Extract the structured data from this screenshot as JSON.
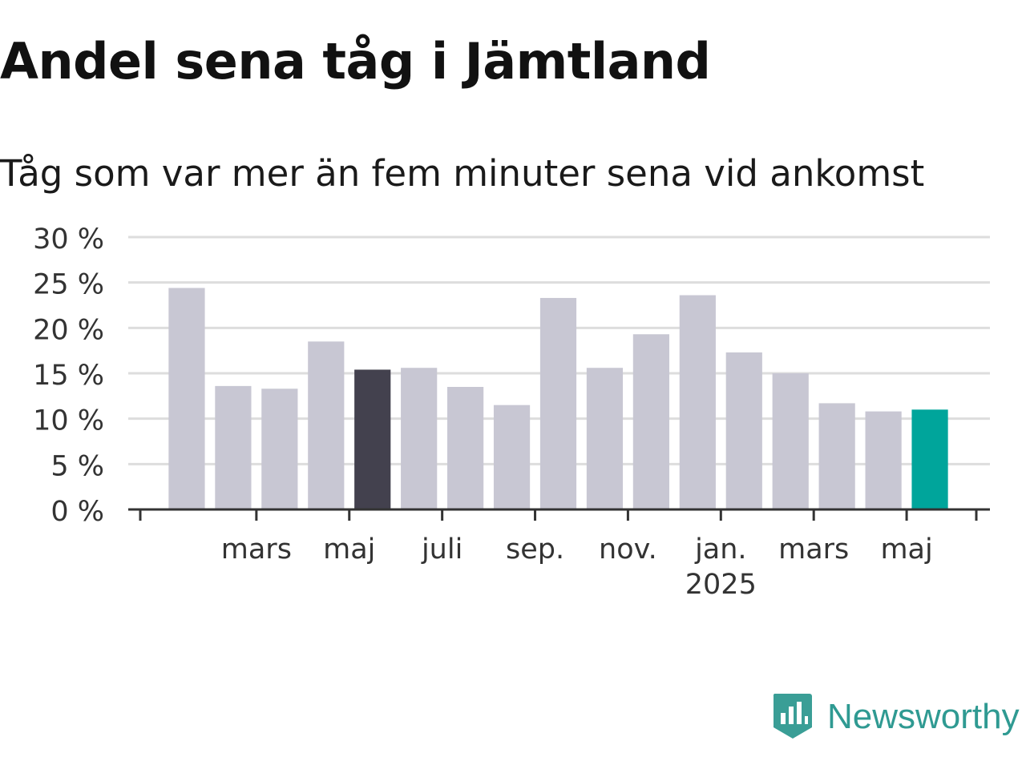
{
  "title": "Andel sena tåg i Jämtland",
  "subtitle": "Tåg som var mer än fem minuter sena vid ankomst",
  "brand": {
    "name": "Newsworthy",
    "icon": "newsworthy-logo-icon",
    "color": "#2f9a92"
  },
  "chart_data": {
    "type": "bar",
    "unit": "%",
    "ylim": [
      0,
      30
    ],
    "yticks": [
      0,
      5,
      10,
      15,
      20,
      25,
      30
    ],
    "ytick_labels": [
      "0 %",
      "5 %",
      "10 %",
      "15 %",
      "20 %",
      "25 %",
      "30 %"
    ],
    "grid": true,
    "values": [
      24.4,
      13.6,
      13.3,
      18.5,
      15.4,
      15.6,
      13.5,
      11.5,
      23.3,
      15.6,
      19.3,
      23.6,
      17.3,
      15.0,
      11.7,
      10.8,
      11.0
    ],
    "x_tick_labels": [
      {
        "after_bar": 1,
        "label": "mars"
      },
      {
        "after_bar": 3,
        "label": "maj"
      },
      {
        "after_bar": 5,
        "label": "juli"
      },
      {
        "after_bar": 7,
        "label": "sep."
      },
      {
        "after_bar": 9,
        "label": "nov."
      },
      {
        "after_bar": 11,
        "label": "jan.",
        "sublabel": "2025"
      },
      {
        "after_bar": 13,
        "label": "mars"
      },
      {
        "after_bar": 15,
        "label": "maj"
      }
    ],
    "colors": {
      "default": "#c8c7d3",
      "highlight": "#43414e",
      "latest": "#00a59b",
      "axis": "#333333",
      "grid": "#dddddd"
    },
    "highlight_index": 4,
    "latest_index": 16
  }
}
